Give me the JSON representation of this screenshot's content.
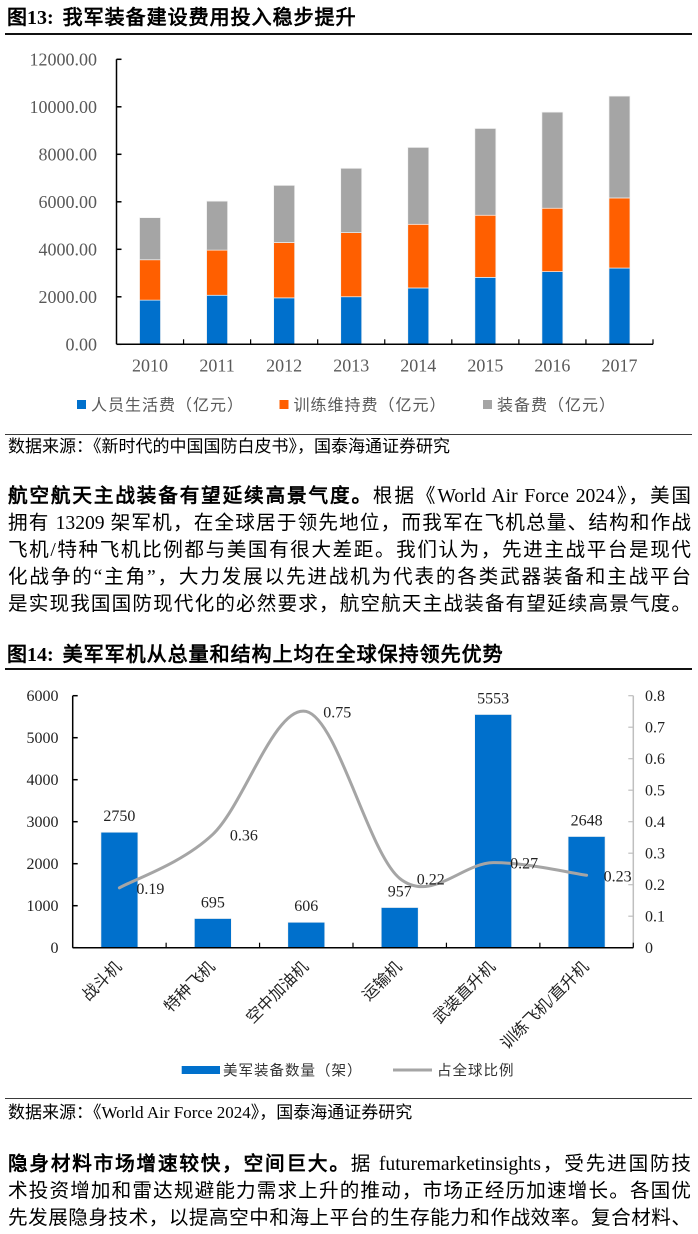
{
  "figures": [
    {
      "label": "图13:",
      "title": "我军装备建设费用投入稳步提升",
      "source": "数据来源：《新时代的中国国防白皮书》，国泰海通证券研究"
    },
    {
      "label": "图14:",
      "title": "美军军机从总量和结构上均在全球保持领先优势",
      "source": "数据来源：《World Air Force 2024》，国泰海通证券研究"
    }
  ],
  "paragraphs": [
    {
      "lead": "航空航天主战装备有望延续高景气度。",
      "lines": [
        "根据《World Air Force 2024》，美国",
        "拥有 13209 架军机，在全球居于领先地位，而我军在飞机总量、结构和作战",
        "飞机/特种飞机比例都与美国有很大差距。我们认为，先进主战平台是现代",
        "化战争的“主角”，大力发展以先进战机为代表的各类武器装备和主战平台",
        "是实现我国国防现代化的必然要求，航空航天主战装备有望延续高景气度。"
      ]
    },
    {
      "lead": "隐身材料市场增速较快，空间巨大。",
      "lines": [
        "据 futuremarketinsights，受先进国防技",
        "术投资增加和雷达规避能力需求上升的推动，市场正经历加速增长。各国优",
        "先发展隐身技术，以提高空中和海上平台的生存能力和作战效率。复合材料、"
      ]
    }
  ],
  "chart_data": [
    {
      "type": "bar",
      "stacked": true,
      "title": "我军装备建设费用投入稳步提升",
      "xlabel": "",
      "ylabel": "",
      "categories": [
        "2010",
        "2011",
        "2012",
        "2013",
        "2014",
        "2015",
        "2016",
        "2017"
      ],
      "series": [
        {
          "name": "人员生活费（亿元）",
          "color": "#0070CC",
          "values": [
            1859.31,
            2065.15,
            1955.37,
            2002.31,
            2372.34,
            2818.63,
            3060.11,
            3210.52
          ]
        },
        {
          "name": "训练维持费（亿元）",
          "color": "#FF5F00",
          "values": [
            1700.12,
            1899.79,
            2329.91,
            2699.18,
            2680.71,
            2615.38,
            2669.12,
            2951.85
          ]
        },
        {
          "name": "装备费（亿元）",
          "color": "#A5A5A5",
          "values": [
            1773.59,
            2062.31,
            2406.07,
            2709.05,
            3236.98,
            3653.43,
            4046.38,
            4288.35
          ]
        }
      ],
      "ylim": [
        0,
        12000
      ],
      "y_ticks": [
        "0.00",
        "2000.00",
        "4000.00",
        "6000.00",
        "8000.00",
        "10000.00",
        "12000.00"
      ],
      "grid": false,
      "legend_position": "bottom"
    },
    {
      "type": "bar+line",
      "title": "美军军机从总量和结构上均在全球保持领先优势",
      "xlabel": "",
      "ylabel": "",
      "categories": [
        "战斗机",
        "特种飞机",
        "空中加油机",
        "运输机",
        "武装直升机",
        "训练飞机/直升机"
      ],
      "series": [
        {
          "name": "美军装备数量（架）",
          "type": "bar",
          "axis": "left",
          "color": "#0070CC",
          "values": [
            2750,
            695,
            606,
            957,
            5553,
            2648
          ],
          "labels": [
            "2750",
            "695",
            "606",
            "957",
            "5553",
            "2648"
          ]
        },
        {
          "name": "占全球比例",
          "type": "line",
          "axis": "right",
          "color": "#A5A5A5",
          "values": [
            0.19,
            0.36,
            0.75,
            0.22,
            0.27,
            0.23
          ],
          "labels": [
            "0.19",
            "0.36",
            "0.75",
            "0.22",
            "0.27",
            "0.23"
          ]
        }
      ],
      "ylim": [
        0,
        6000
      ],
      "y_ticks": [
        "0",
        "1000",
        "2000",
        "3000",
        "4000",
        "5000",
        "6000"
      ],
      "y2lim": [
        0,
        0.8
      ],
      "y2_ticks": [
        "0",
        "0.1",
        "0.2",
        "0.3",
        "0.4",
        "0.5",
        "0.6",
        "0.7",
        "0.8"
      ],
      "grid": false,
      "legend_position": "bottom"
    }
  ]
}
